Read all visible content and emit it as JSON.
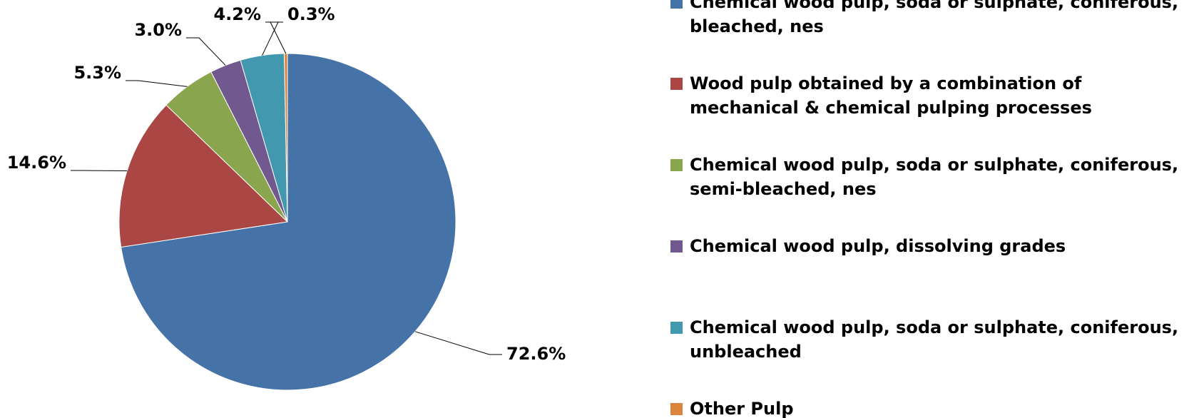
{
  "chart_data": {
    "type": "pie",
    "categories": [
      "Chemical wood pulp, soda or sulphate, coniferous, bleached, nes",
      "Wood pulp obtained by a combination of mechanical & chemical pulping processes",
      "Chemical wood pulp, soda or sulphate, coniferous, semi-bleached, nes",
      "Chemical wood pulp, dissolving grades",
      "Chemical wood pulp, soda or sulphate, coniferous, unbleached",
      "Other Pulp"
    ],
    "values": [
      72.6,
      14.6,
      5.3,
      3.0,
      4.2,
      0.3
    ],
    "value_labels": [
      "72.6%",
      "14.6%",
      "5.3%",
      "3.0%",
      "4.2%",
      "0.3%"
    ],
    "colors": [
      "#4572a7",
      "#aa4643",
      "#89a54e",
      "#71588f",
      "#4198af",
      "#db843d"
    ],
    "legend": "right"
  }
}
